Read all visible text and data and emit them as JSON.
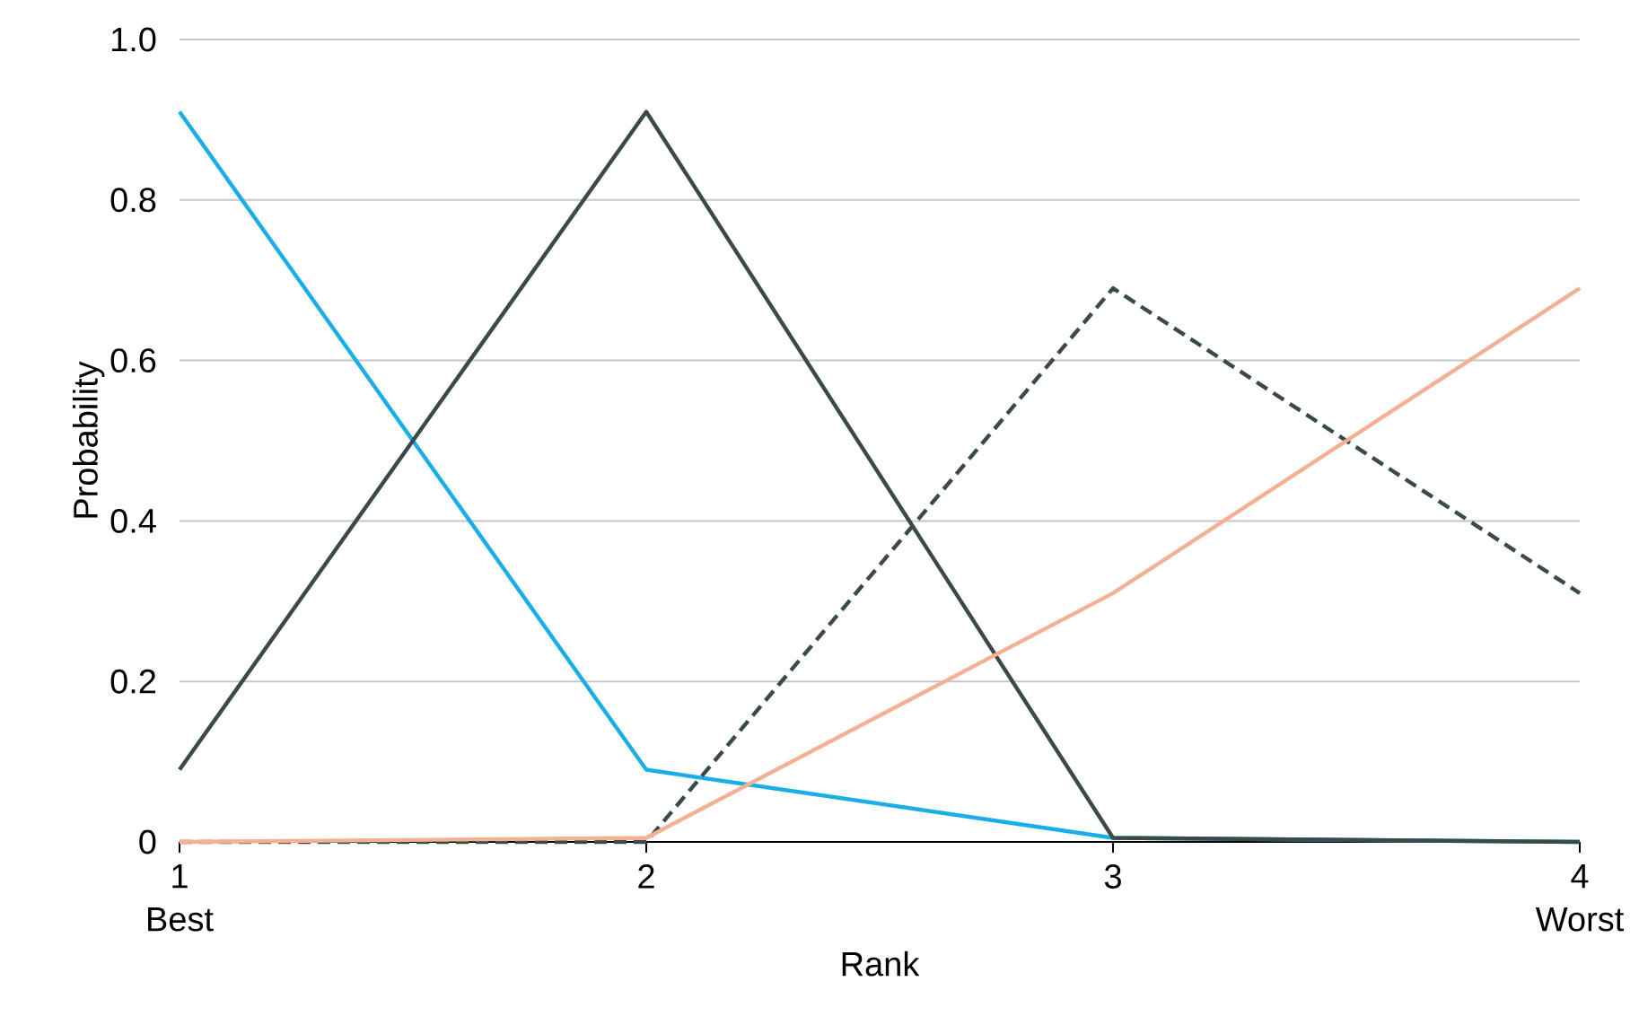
{
  "chart_data": {
    "type": "line",
    "xlabel": "Rank",
    "ylabel": "Probability",
    "x": [
      1,
      2,
      3,
      4
    ],
    "series": [
      {
        "color": "#1aaee6",
        "values": [
          0.91,
          0.09,
          0.005,
          0
        ]
      },
      {
        "color": "#3a4a48",
        "values": [
          0.09,
          0.91,
          0.005,
          0
        ]
      },
      {
        "color": "#3a4a48",
        "line_style": "dashed",
        "values": [
          0,
          0,
          0.69,
          0.31
        ]
      },
      {
        "color": "#f4b093",
        "values": [
          0,
          0.005,
          0.31,
          0.69
        ]
      }
    ],
    "xlim": [
      1,
      4
    ],
    "xticks": [
      1,
      2,
      3,
      4
    ],
    "ylim": [
      0,
      1
    ],
    "yticks": [
      0,
      {
        "value": 0.2,
        "label": "0.2"
      },
      {
        "value": 0.4,
        "label": "0.4"
      },
      {
        "value": 0.6,
        "label": "0.6"
      },
      {
        "value": 0.8,
        "label": "0.8"
      },
      {
        "value": 1,
        "label": "1.0"
      }
    ],
    "grid": "y",
    "marker": "none",
    "line_style": "solid",
    "annotations": [
      "Best",
      "Worst"
    ]
  }
}
